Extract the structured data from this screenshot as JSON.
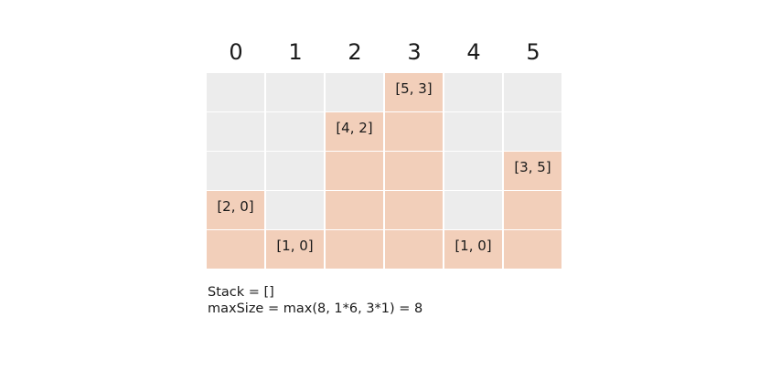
{
  "columns": [
    "0",
    "1",
    "2",
    "3",
    "4",
    "5"
  ],
  "heights": [
    2,
    1,
    4,
    5,
    1,
    3
  ],
  "max_rows": 5,
  "bar_labels": [
    "[2, 0]",
    "[1, 0]",
    "[4, 2]",
    "[5, 3]",
    "[1, 0]",
    "[3, 5]"
  ],
  "colors": {
    "empty": "#ececec",
    "filled": "#f2cfba"
  },
  "caption": {
    "stack": "Stack = []",
    "max_size": "maxSize = max(8, 1*6, 3*1) = 8"
  }
}
